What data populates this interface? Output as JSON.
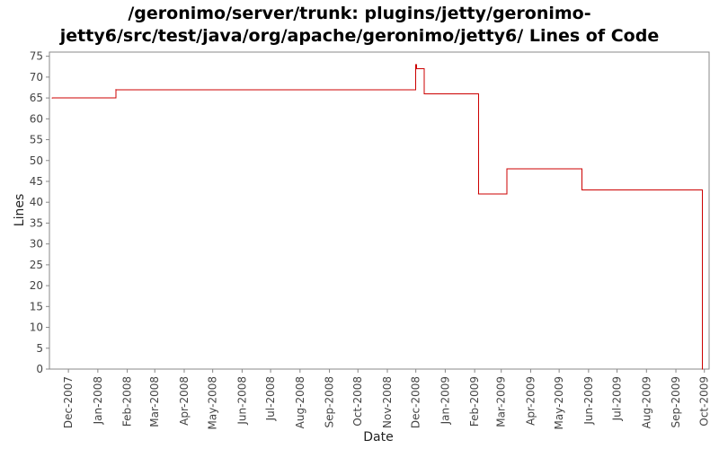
{
  "chart_data": {
    "type": "line",
    "title_line1": "/geronimo/server/trunk: plugins/jetty/geronimo-",
    "title_line2": "jetty6/src/test/java/org/apache/geronimo/jetty6/ Lines of Code",
    "xlabel": "Date",
    "ylabel": "Lines",
    "ylim": [
      0,
      76
    ],
    "yticks": [
      0,
      5,
      10,
      15,
      20,
      25,
      30,
      35,
      40,
      45,
      50,
      55,
      60,
      65,
      70,
      75
    ],
    "xlim": [
      "2007-11-11",
      "2009-10-06"
    ],
    "xticks": [
      {
        "date": "2007-12-01",
        "label": "Dec-2007"
      },
      {
        "date": "2008-01-01",
        "label": "Jan-2008"
      },
      {
        "date": "2008-02-01",
        "label": "Feb-2008"
      },
      {
        "date": "2008-03-01",
        "label": "Mar-2008"
      },
      {
        "date": "2008-04-01",
        "label": "Apr-2008"
      },
      {
        "date": "2008-05-01",
        "label": "May-2008"
      },
      {
        "date": "2008-06-01",
        "label": "Jun-2008"
      },
      {
        "date": "2008-07-01",
        "label": "Jul-2008"
      },
      {
        "date": "2008-08-01",
        "label": "Aug-2008"
      },
      {
        "date": "2008-09-01",
        "label": "Sep-2008"
      },
      {
        "date": "2008-10-01",
        "label": "Oct-2008"
      },
      {
        "date": "2008-11-01",
        "label": "Nov-2008"
      },
      {
        "date": "2008-12-01",
        "label": "Dec-2008"
      },
      {
        "date": "2009-01-01",
        "label": "Jan-2009"
      },
      {
        "date": "2009-02-01",
        "label": "Feb-2009"
      },
      {
        "date": "2009-03-01",
        "label": "Mar-2009"
      },
      {
        "date": "2009-04-01",
        "label": "Apr-2009"
      },
      {
        "date": "2009-05-01",
        "label": "May-2009"
      },
      {
        "date": "2009-06-01",
        "label": "Jun-2009"
      },
      {
        "date": "2009-07-01",
        "label": "Jul-2009"
      },
      {
        "date": "2009-08-01",
        "label": "Aug-2009"
      },
      {
        "date": "2009-09-01",
        "label": "Sep-2009"
      },
      {
        "date": "2009-10-01",
        "label": "Oct-2009"
      }
    ],
    "grid": false,
    "legend": "none",
    "series": [
      {
        "step": true,
        "color": "#cc0000",
        "points": [
          {
            "x": "2007-11-14",
            "y": 65
          },
          {
            "x": "2008-01-20",
            "y": 67
          },
          {
            "x": "2008-12-01",
            "y": 73
          },
          {
            "x": "2008-12-02",
            "y": 72
          },
          {
            "x": "2008-12-10",
            "y": 66
          },
          {
            "x": "2009-02-05",
            "y": 42
          },
          {
            "x": "2009-03-07",
            "y": 48
          },
          {
            "x": "2009-05-25",
            "y": 43
          },
          {
            "x": "2009-09-29",
            "y": 0
          }
        ]
      }
    ]
  }
}
